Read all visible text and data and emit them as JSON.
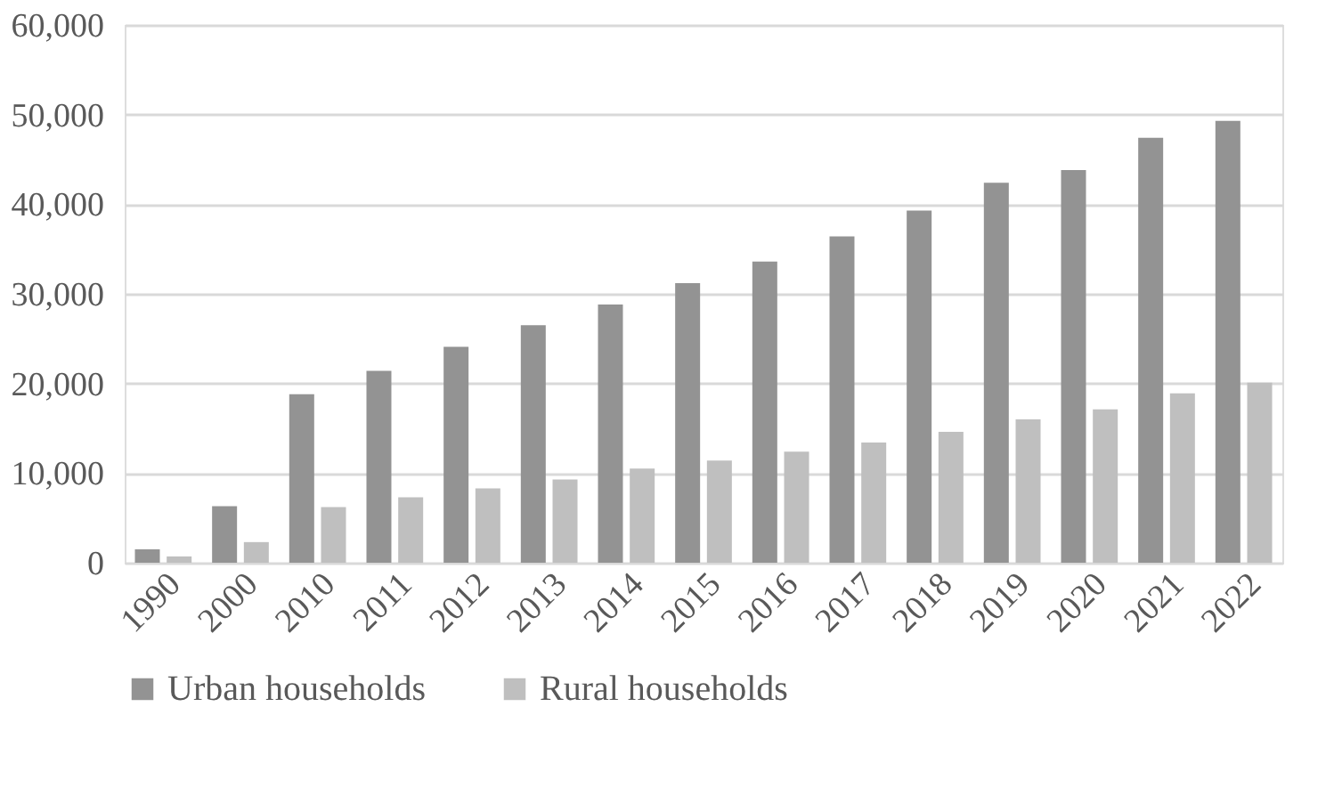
{
  "chart_data": {
    "type": "bar",
    "categories": [
      "1990",
      "2000",
      "2010",
      "2011",
      "2012",
      "2013",
      "2014",
      "2015",
      "2016",
      "2017",
      "2018",
      "2019",
      "2020",
      "2021",
      "2022"
    ],
    "series": [
      {
        "name": "Urban households",
        "color": "#939393",
        "values": [
          1500,
          6300,
          18800,
          21400,
          24100,
          26500,
          28800,
          31200,
          33600,
          36400,
          39300,
          42400,
          43800,
          47400,
          49300
        ]
      },
      {
        "name": "Rural households",
        "color": "#bfbfbf",
        "values": [
          700,
          2300,
          6200,
          7300,
          8300,
          9300,
          10500,
          11400,
          12400,
          13400,
          14600,
          16000,
          17100,
          18900,
          20100
        ]
      }
    ],
    "ylim": [
      0,
      60000
    ],
    "yticks": [
      {
        "value": 0,
        "label": "0"
      },
      {
        "value": 10000,
        "label": "10,000"
      },
      {
        "value": 20000,
        "label": "20,000"
      },
      {
        "value": 30000,
        "label": "30,000"
      },
      {
        "value": 40000,
        "label": "40,000"
      },
      {
        "value": 50000,
        "label": "50,000"
      },
      {
        "value": 60000,
        "label": "60,000"
      }
    ],
    "grid": "y",
    "legend": "bottom"
  }
}
